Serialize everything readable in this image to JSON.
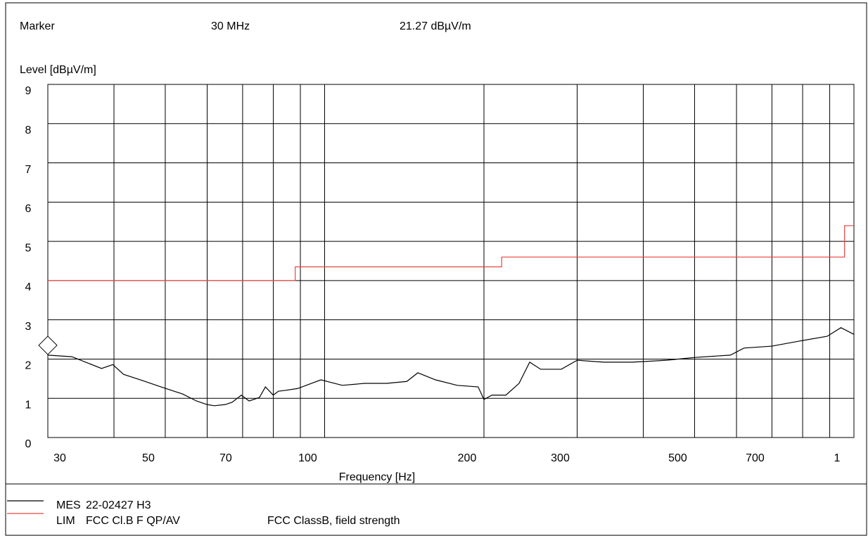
{
  "marker": {
    "label": "Marker",
    "frequency": "30 MHz",
    "level": "21.27 dBµV/m"
  },
  "chart_data": {
    "type": "line",
    "y_label": "Level [dBµV/m]",
    "x_label": "Frequency [Hz]",
    "log_x": true,
    "grid": true,
    "xlim": [
      30,
      1000
    ],
    "xticks": [
      30,
      50,
      70,
      100,
      200,
      300,
      500,
      700,
      {
        "value": 1000,
        "label": "1"
      }
    ],
    "xminor": [
      40,
      60,
      80,
      90,
      400,
      600,
      800,
      900
    ],
    "ylim": [
      0,
      9
    ],
    "yticks": [
      0,
      1,
      2,
      3,
      4,
      5,
      6,
      7,
      8,
      9
    ],
    "marker_point": {
      "x": 30,
      "y": 2.35
    },
    "series": [
      {
        "name": "MES",
        "description": "22-02427 H3",
        "color": "#000000",
        "x": [
          30,
          33.3,
          37.9,
          39.8,
          41.7,
          44.9,
          49.1,
          53.9,
          57.3,
          60,
          61.9,
          64.9,
          66.9,
          69.6,
          72,
          75.3,
          77.3,
          80,
          81.8,
          84.1,
          89,
          94.4,
          98.4,
          108,
          119,
          131,
          143,
          150,
          162,
          178,
          195,
          200,
          207,
          220,
          233,
          244,
          256,
          280,
          300,
          337,
          381,
          443,
          500,
          584,
          620,
          700,
          790,
          890,
          945,
          1000
        ],
        "values": [
          2.1,
          2.06,
          1.76,
          1.86,
          1.61,
          1.47,
          1.29,
          1.11,
          0.93,
          0.84,
          0.81,
          0.84,
          0.9,
          1.08,
          0.93,
          1.02,
          1.29,
          1.08,
          1.18,
          1.2,
          1.25,
          1.38,
          1.47,
          1.33,
          1.38,
          1.38,
          1.43,
          1.65,
          1.47,
          1.33,
          1.29,
          0.97,
          1.08,
          1.08,
          1.38,
          1.92,
          1.74,
          1.74,
          1.97,
          1.92,
          1.92,
          1.97,
          2.04,
          2.1,
          2.28,
          2.33,
          2.46,
          2.58,
          2.8,
          2.63
        ]
      },
      {
        "name": "LIM",
        "description": "FCC Cl.B F QP/AV",
        "note": "FCC ClassB, field strength",
        "color": "#e8463f",
        "x": [
          30,
          88,
          88,
          216,
          216,
          960,
          960,
          1000
        ],
        "values": [
          4,
          4,
          4.35,
          4.35,
          4.6,
          4.6,
          5.4,
          5.4
        ]
      }
    ]
  }
}
